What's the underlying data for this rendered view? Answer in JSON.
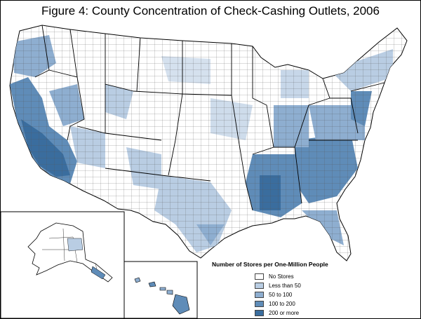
{
  "title": "Figure 4: County Concentration of Check-Cashing Outlets, 2006",
  "legend": {
    "title": "Number of Stores per One-Million People",
    "items": [
      {
        "label": "No Stores",
        "color": "#ffffff"
      },
      {
        "label": "Less than 50",
        "color": "#b9cde3"
      },
      {
        "label": "50 to 100",
        "color": "#8eaed0"
      },
      {
        "label": "100 to 200",
        "color": "#5f8cb8"
      },
      {
        "label": "200 or more",
        "color": "#3a6d9e"
      }
    ]
  },
  "colors": {
    "border": "#000000",
    "county_line": "#2a2a2a"
  }
}
